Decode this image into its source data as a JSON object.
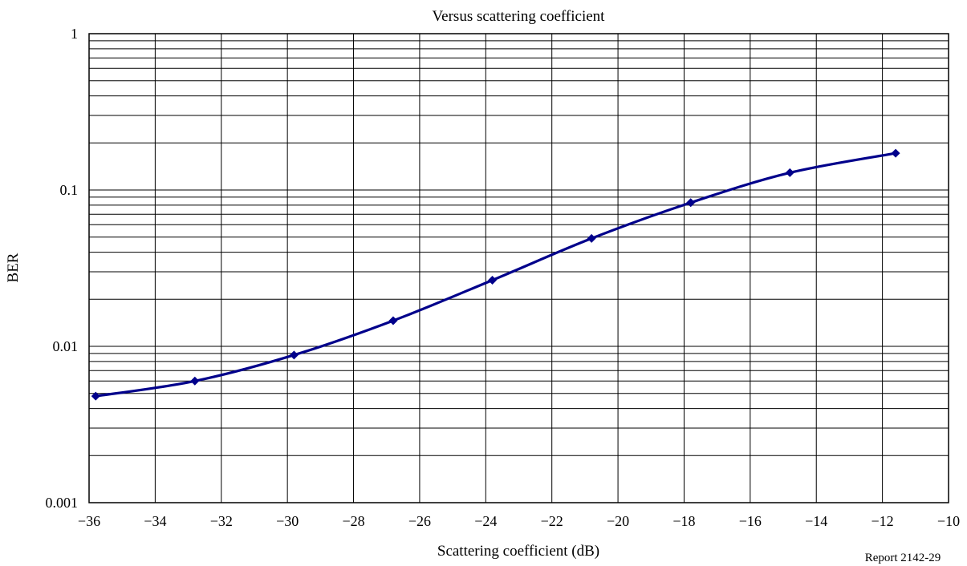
{
  "chart_data": {
    "type": "line",
    "title": "Versus scattering coefficient",
    "xlabel": "Scattering coefficient (dB)",
    "ylabel": "BER",
    "xlim": [
      -36,
      -10
    ],
    "ylim": [
      0.001,
      1
    ],
    "y_scale": "log",
    "grid": true,
    "legend": "none",
    "x_ticks": [
      -36,
      -34,
      -32,
      -30,
      -28,
      -26,
      -24,
      -22,
      -20,
      -18,
      -16,
      -14,
      -12,
      -10
    ],
    "x_tick_labels": [
      "−36",
      "−34",
      "−32",
      "−30",
      "−28",
      "−26",
      "−24",
      "−22",
      "−20",
      "−18",
      "−16",
      "−14",
      "−12",
      "−10"
    ],
    "y_ticks": [
      0.001,
      0.01,
      0.1,
      1
    ],
    "y_tick_labels": [
      "0.001",
      "0.01",
      "0.1",
      "1"
    ],
    "series": [
      {
        "color": "#00008b",
        "x": [
          -35.8,
          -32.8,
          -29.8,
          -26.8,
          -23.8,
          -20.8,
          -17.8,
          -14.8,
          -11.6
        ],
        "y": [
          0.0048,
          0.006,
          0.0088,
          0.0146,
          0.0265,
          0.049,
          0.083,
          0.129,
          0.172
        ]
      }
    ],
    "annotations": [
      "Report 2142-29"
    ]
  }
}
